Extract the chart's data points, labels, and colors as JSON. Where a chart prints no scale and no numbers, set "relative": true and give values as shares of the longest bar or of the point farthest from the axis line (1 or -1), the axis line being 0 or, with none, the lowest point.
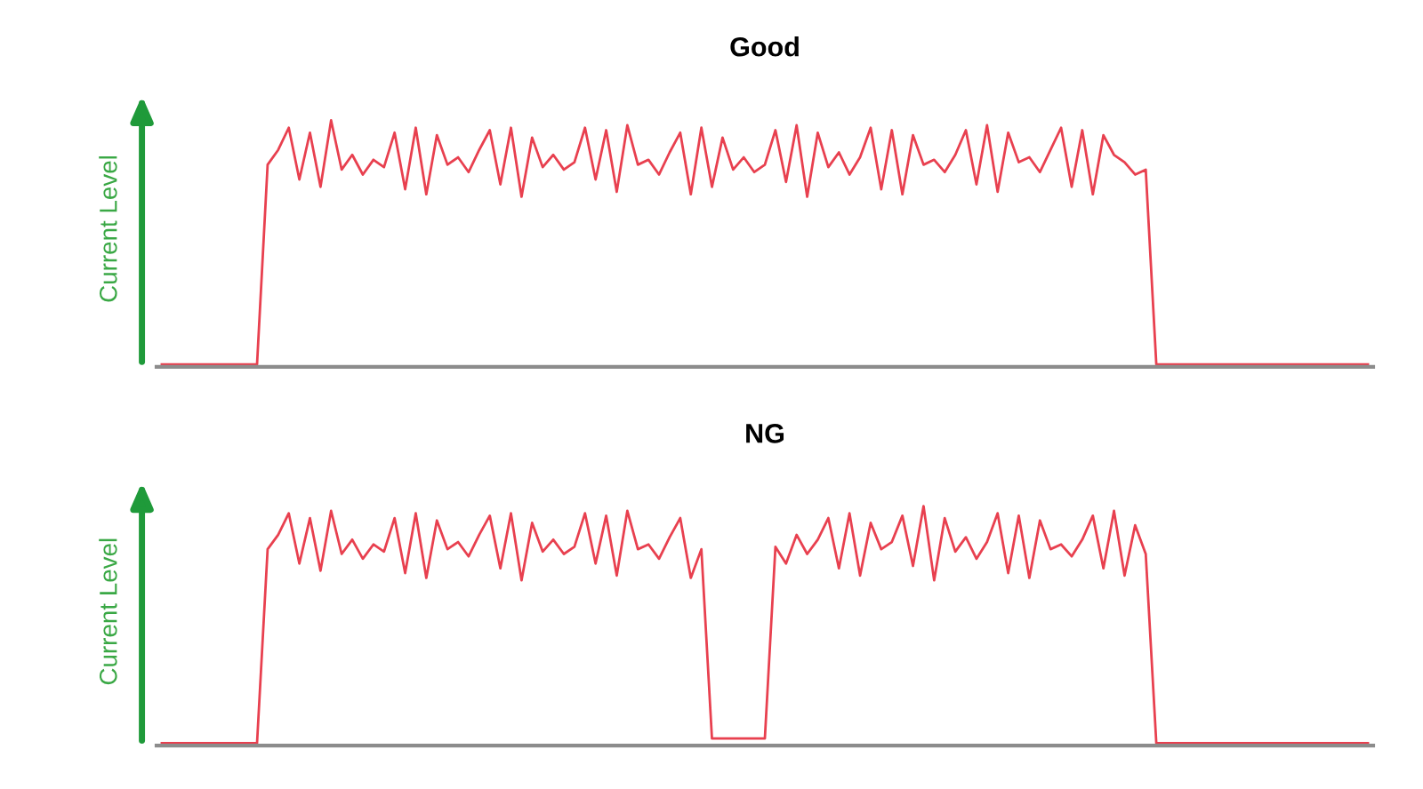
{
  "chart_data": [
    {
      "type": "line",
      "title": "Good",
      "ylabel": "Current Level",
      "relative": true,
      "marker": "none",
      "line_style": "solid",
      "tick_labels": false,
      "categories": [
        null,
        null,
        null,
        null,
        null,
        null,
        null,
        null,
        null,
        null,
        null,
        null,
        null,
        null,
        null,
        null,
        null,
        null,
        null,
        null,
        null,
        null,
        null,
        null,
        null,
        null,
        null,
        null,
        null,
        null,
        null,
        null,
        null,
        null,
        null,
        null,
        null,
        null,
        null,
        null,
        null,
        null,
        null,
        null,
        null,
        null,
        null,
        null,
        null,
        null,
        null,
        null,
        null,
        null,
        null,
        null,
        null,
        null,
        null,
        null,
        null,
        null,
        null,
        null,
        null,
        null,
        null,
        null,
        null,
        null,
        null,
        null,
        null,
        null,
        null,
        null,
        null,
        null,
        null,
        null,
        null,
        null,
        null,
        null,
        null,
        null,
        null,
        null,
        null,
        null,
        null,
        null,
        null,
        null,
        null,
        null,
        null,
        null,
        null,
        null,
        null,
        null,
        null,
        null,
        null,
        null,
        null,
        null,
        null,
        null,
        null,
        null,
        null,
        null,
        null
      ],
      "series": [
        {
          "color": "#e8404f",
          "values": [
            0.01,
            0.01,
            0.01,
            0.01,
            0.01,
            0.01,
            0.01,
            0.01,
            0.01,
            0.01,
            0.82,
            0.88,
            0.97,
            0.76,
            0.95,
            0.73,
            1,
            0.8,
            0.86,
            0.78,
            0.84,
            0.81,
            0.95,
            0.72,
            0.97,
            0.7,
            0.94,
            0.82,
            0.85,
            0.79,
            0.88,
            0.96,
            0.74,
            0.97,
            0.69,
            0.93,
            0.81,
            0.86,
            0.8,
            0.83,
            0.97,
            0.76,
            0.96,
            0.71,
            0.98,
            0.82,
            0.84,
            0.78,
            0.87,
            0.95,
            0.7,
            0.97,
            0.73,
            0.93,
            0.8,
            0.85,
            0.79,
            0.82,
            0.96,
            0.75,
            0.98,
            0.69,
            0.95,
            0.81,
            0.87,
            0.78,
            0.85,
            0.97,
            0.72,
            0.96,
            0.7,
            0.94,
            0.82,
            0.84,
            0.79,
            0.86,
            0.96,
            0.74,
            0.98,
            0.71,
            0.95,
            0.83,
            0.85,
            0.79,
            0.88,
            0.97,
            0.73,
            0.96,
            0.7,
            0.94,
            0.86,
            0.83,
            0.78,
            0.8,
            0.01,
            0.01,
            0.01,
            0.01,
            0.01,
            0.01,
            0.01,
            0.01,
            0.01,
            0.01,
            0.01,
            0.01,
            0.01,
            0.01,
            0.01,
            0.01,
            0.01,
            0.01,
            0.01,
            0.01,
            0.01
          ]
        }
      ]
    },
    {
      "type": "line",
      "title": "NG",
      "ylabel": "Current Level",
      "relative": true,
      "marker": "none",
      "line_style": "solid",
      "tick_labels": false,
      "categories": [
        null,
        null,
        null,
        null,
        null,
        null,
        null,
        null,
        null,
        null,
        null,
        null,
        null,
        null,
        null,
        null,
        null,
        null,
        null,
        null,
        null,
        null,
        null,
        null,
        null,
        null,
        null,
        null,
        null,
        null,
        null,
        null,
        null,
        null,
        null,
        null,
        null,
        null,
        null,
        null,
        null,
        null,
        null,
        null,
        null,
        null,
        null,
        null,
        null,
        null,
        null,
        null,
        null,
        null,
        null,
        null,
        null,
        null,
        null,
        null,
        null,
        null,
        null,
        null,
        null,
        null,
        null,
        null,
        null,
        null,
        null,
        null,
        null,
        null,
        null,
        null,
        null,
        null,
        null,
        null,
        null,
        null,
        null,
        null,
        null,
        null,
        null,
        null,
        null,
        null,
        null,
        null,
        null,
        null,
        null,
        null,
        null,
        null,
        null,
        null,
        null,
        null,
        null,
        null,
        null,
        null,
        null,
        null,
        null,
        null,
        null,
        null,
        null,
        null,
        null
      ],
      "series": [
        {
          "color": "#e8404f",
          "values": [
            0.01,
            0.01,
            0.01,
            0.01,
            0.01,
            0.01,
            0.01,
            0.01,
            0.01,
            0.01,
            0.82,
            0.88,
            0.97,
            0.76,
            0.95,
            0.73,
            0.98,
            0.8,
            0.86,
            0.78,
            0.84,
            0.81,
            0.95,
            0.72,
            0.97,
            0.7,
            0.94,
            0.82,
            0.85,
            0.79,
            0.88,
            0.96,
            0.74,
            0.97,
            0.69,
            0.93,
            0.81,
            0.86,
            0.8,
            0.83,
            0.97,
            0.76,
            0.96,
            0.71,
            0.98,
            0.82,
            0.84,
            0.78,
            0.87,
            0.95,
            0.7,
            0.82,
            0.03,
            0.03,
            0.03,
            0.03,
            0.03,
            0.03,
            0.83,
            0.76,
            0.88,
            0.8,
            0.86,
            0.95,
            0.74,
            0.97,
            0.71,
            0.93,
            0.82,
            0.85,
            0.96,
            0.75,
            1,
            0.69,
            0.95,
            0.81,
            0.87,
            0.78,
            0.85,
            0.97,
            0.72,
            0.96,
            0.7,
            0.94,
            0.82,
            0.84,
            0.79,
            0.86,
            0.96,
            0.74,
            0.98,
            0.71,
            0.92,
            0.8,
            0.01,
            0.01,
            0.01,
            0.01,
            0.01,
            0.01,
            0.01,
            0.01,
            0.01,
            0.01,
            0.01,
            0.01,
            0.01,
            0.01,
            0.01,
            0.01,
            0.01,
            0.01,
            0.01,
            0.01,
            0.01
          ]
        }
      ]
    }
  ]
}
